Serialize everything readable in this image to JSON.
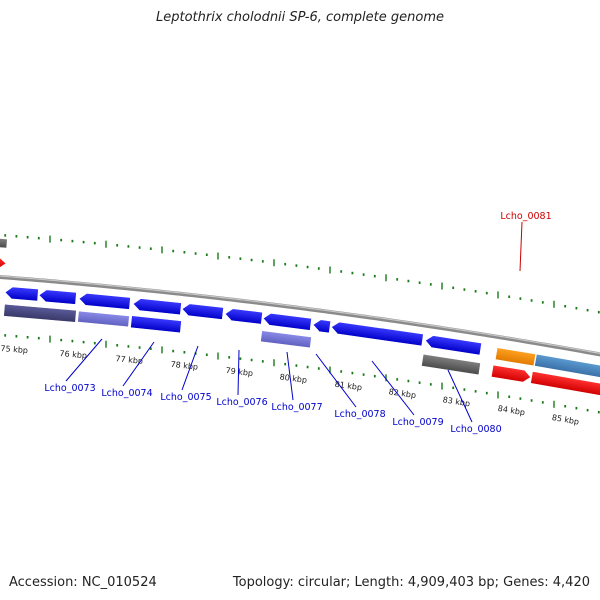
{
  "title": "Leptothrix cholodnii SP-6, complete genome",
  "footer": {
    "accession": "Accession: NC_010524",
    "summary": "Topology: circular; Length: 4,909,403 bp; Genes: 4,420"
  },
  "colors": {
    "backbone": "#8a8a8a",
    "tick": "#1a7a1a",
    "forward_cds": "#0000ee",
    "other_gene": "#ee0000",
    "label_blue": "#0000cc",
    "label_red": "#cc0000"
  },
  "kbp_labels": [
    "75 kbp",
    "76 kbp",
    "77 kbp",
    "78 kbp",
    "79 kbp",
    "80 kbp",
    "81 kbp",
    "82 kbp",
    "83 kbp",
    "84 kbp",
    "85 kbp"
  ],
  "gene_labels": [
    {
      "text": "Lcho_0073",
      "color": "#0000cc"
    },
    {
      "text": "Lcho_0074",
      "color": "#0000cc"
    },
    {
      "text": "Lcho_0075",
      "color": "#0000cc"
    },
    {
      "text": "Lcho_0076",
      "color": "#0000cc"
    },
    {
      "text": "Lcho_0077",
      "color": "#0000cc"
    },
    {
      "text": "Lcho_0078",
      "color": "#0000cc"
    },
    {
      "text": "Lcho_0079",
      "color": "#0000cc"
    },
    {
      "text": "Lcho_0080",
      "color": "#0000cc"
    },
    {
      "text": "Lcho_0081",
      "color": "#cc0000"
    }
  ]
}
